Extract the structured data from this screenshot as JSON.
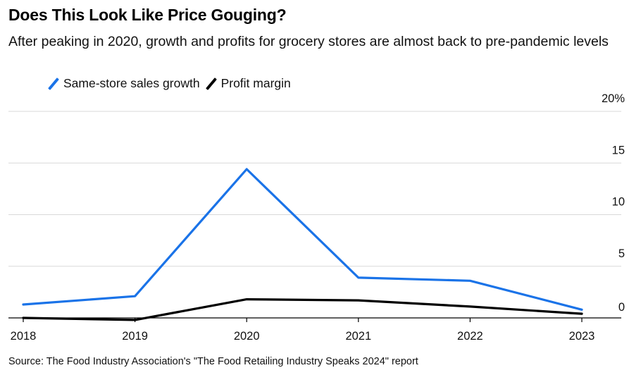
{
  "header": {
    "title": "Does This Look Like Price Gouging?",
    "subtitle": "After peaking in 2020, growth and profits for grocery stores are almost back to pre-pandemic levels"
  },
  "legend": [
    {
      "name": "Same-store sales growth",
      "color": "#1a73e8"
    },
    {
      "name": "Profit margin",
      "color": "#000000"
    }
  ],
  "footer": {
    "source": "Source: The Food Industry Association's \"The Food Retailing Industry Speaks 2024\" report"
  },
  "chart_data": {
    "type": "line",
    "x": [
      "2018",
      "2019",
      "2020",
      "2021",
      "2022",
      "2023"
    ],
    "series": [
      {
        "name": "Same-store sales growth",
        "color": "#1a73e8",
        "values": [
          1.3,
          2.1,
          14.4,
          3.9,
          3.6,
          0.8
        ]
      },
      {
        "name": "Profit margin",
        "color": "#000000",
        "values": [
          0.0,
          -0.2,
          1.8,
          1.7,
          1.1,
          0.4
        ]
      }
    ],
    "ylim": [
      0,
      20
    ],
    "yticks": [
      0,
      5,
      10,
      15,
      20
    ],
    "ytick_labels": [
      "0",
      "5",
      "10",
      "15",
      "20%"
    ],
    "grid": true,
    "y_axis_position": "right",
    "legend_position": "top-left"
  }
}
